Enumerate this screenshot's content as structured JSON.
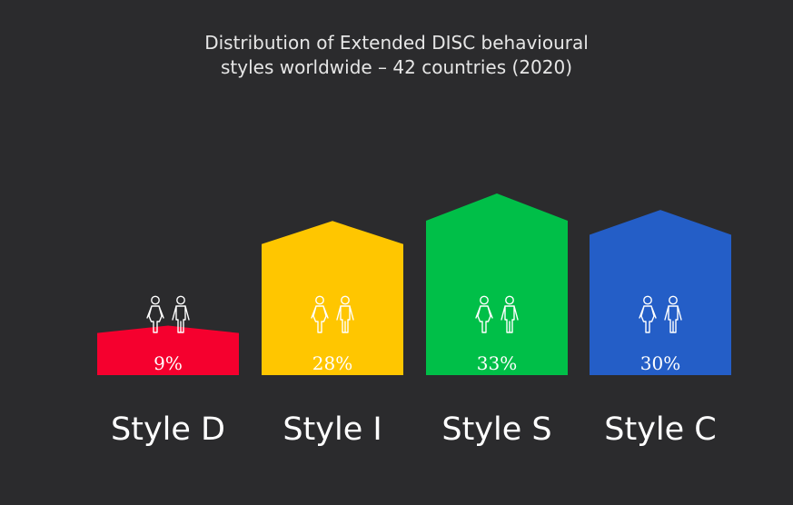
{
  "chart_data": {
    "type": "bar",
    "title_lines": [
      "Distribution of Extended DISC behavioural",
      "styles worldwide – 42 countries (2020)"
    ],
    "categories": [
      "Style D",
      "Style I",
      "Style S",
      "Style C"
    ],
    "values": [
      9,
      28,
      33,
      30
    ],
    "value_labels": [
      "9%",
      "28%",
      "33%",
      "30%"
    ],
    "colors": [
      "#f5002e",
      "#ffc600",
      "#00bf48",
      "#245ec7"
    ],
    "icon": "male-female-person-pair-icon",
    "ylim": [
      0,
      33
    ],
    "legend": "none",
    "grid": false
  }
}
